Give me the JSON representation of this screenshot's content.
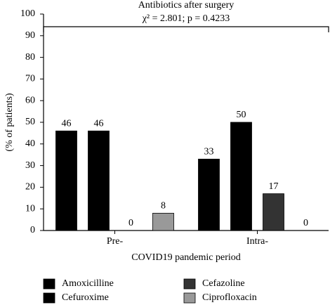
{
  "chart_data": {
    "type": "bar",
    "title": "Antibiotics after surgery",
    "annotation": "χ² = 2.801; p = 0.4233",
    "y_label": "(% of patients)",
    "x_label": "COVID19 pandemic period",
    "categories": [
      "Pre-",
      "Intra-"
    ],
    "series": [
      {
        "name": "Amoxicilline",
        "color": "#000000",
        "values": [
          46,
          33
        ]
      },
      {
        "name": "Cefuroxime",
        "color": "#000000",
        "values": [
          46,
          50
        ]
      },
      {
        "name": "Cefazoline",
        "color": "#333333",
        "values": [
          0,
          17
        ]
      },
      {
        "name": "Ciprofloxacin",
        "color": "#999999",
        "values": [
          8,
          0
        ]
      }
    ],
    "ylim": [
      0,
      100
    ],
    "yticks": [
      0,
      10,
      20,
      30,
      40,
      50,
      60,
      70,
      80,
      90,
      100
    ],
    "grid": false
  }
}
